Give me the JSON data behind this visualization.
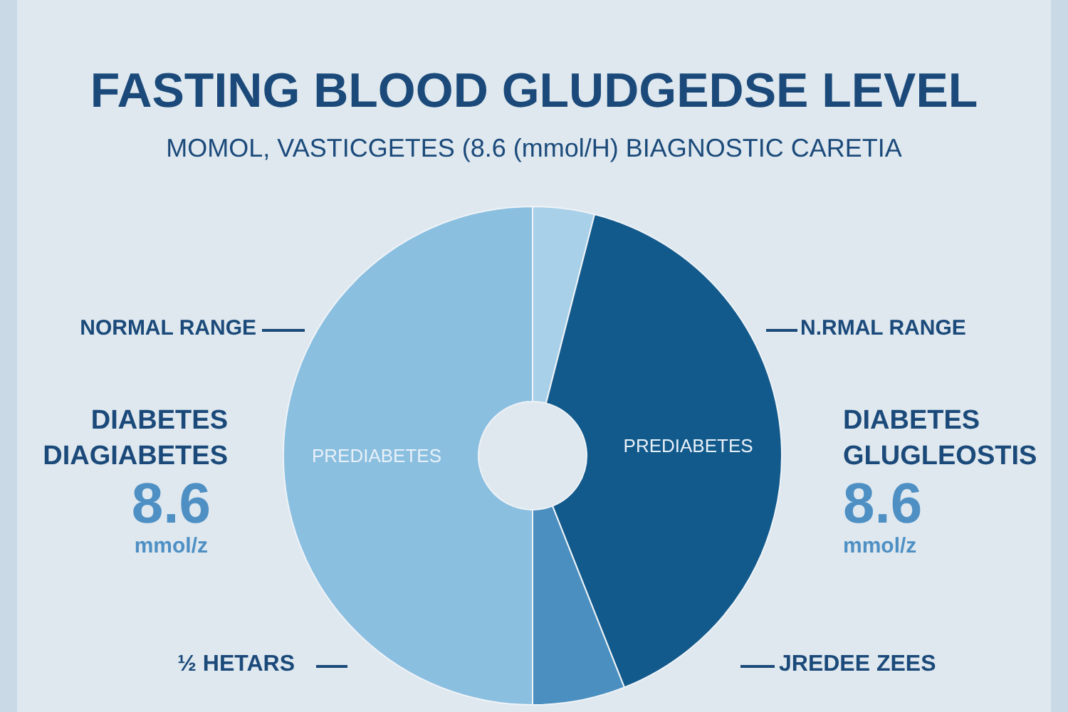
{
  "chart_data": {
    "type": "donut",
    "title": "FASTING BLOOD GLUDGEDSE LEVEL",
    "subtitle": "MOMOL, VASTICGETES (8.6 (mmol/H) BIAGNOSTIC CARETIA",
    "categories": [
      null,
      "PREDIABETES",
      null,
      "PREDIABETES"
    ],
    "values": [
      4,
      40,
      6,
      50
    ],
    "colors": [
      "#a8d0e8",
      "#135a8c",
      "#4a8fc0",
      "#8bbfe0"
    ],
    "annotations": [
      "NORMAL RANGE",
      "DIABETES",
      "DIAGIABETES",
      "8.6",
      "mmol/z",
      "½ HETARS",
      "N.RMAL RANGE",
      "DIABETES",
      "GLUGLEOSTIS",
      "8.6",
      "mmol/z",
      "JREDEE ZEES"
    ],
    "legend": false
  }
}
